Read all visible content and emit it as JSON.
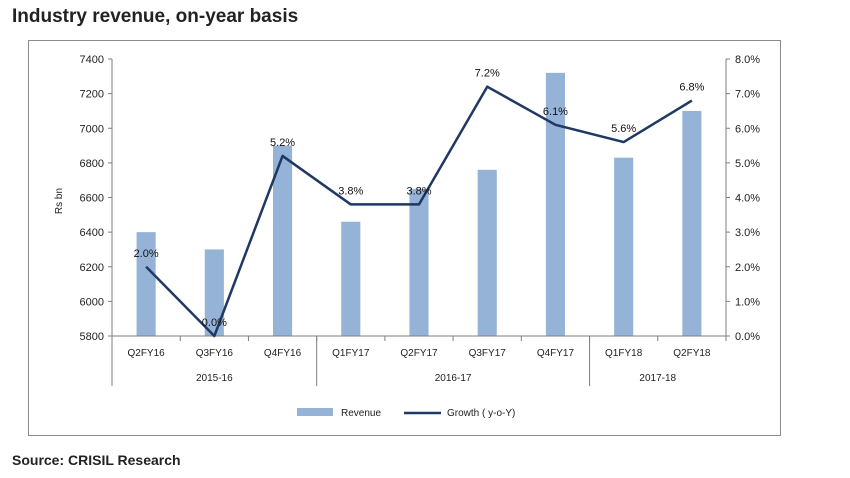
{
  "title": "Industry revenue, on-year basis",
  "source": "Source: CRISIL Research",
  "chart_data": {
    "type": "bar",
    "categories": [
      "Q2FY16",
      "Q3FY16",
      "Q4FY16",
      "Q1FY17",
      "Q2FY17",
      "Q3FY17",
      "Q4FY17",
      "Q1FY18",
      "Q2FY18"
    ],
    "groups": [
      {
        "label": "2015-16",
        "count": 3
      },
      {
        "label": "2016-17",
        "count": 4
      },
      {
        "label": "2017-18",
        "count": 2
      }
    ],
    "ylabel": "Rs bn",
    "ylim": [
      5800,
      7400
    ],
    "yticks": [
      "5800",
      "6000",
      "6200",
      "6400",
      "6600",
      "6800",
      "7000",
      "7200",
      "7400"
    ],
    "y2lim": [
      0,
      8
    ],
    "y2ticks": [
      "0.0%",
      "1.0%",
      "2.0%",
      "3.0%",
      "4.0%",
      "5.0%",
      "6.0%",
      "7.0%",
      "8.0%"
    ],
    "series": [
      {
        "name": "Revenue",
        "kind": "bar",
        "axis": "left",
        "values": [
          6400,
          6300,
          6900,
          6460,
          6650,
          6760,
          7320,
          6830,
          7100
        ],
        "color": "#95b3d7"
      },
      {
        "name": "Growth ( y-o-Y)",
        "kind": "line",
        "axis": "right",
        "values": [
          2.0,
          0.0,
          5.2,
          3.8,
          3.8,
          7.2,
          6.1,
          5.6,
          6.8
        ],
        "labels": [
          "2.0%",
          "0.0%",
          "5.2%",
          "3.8%",
          "3.8%",
          "7.2%",
          "6.1%",
          "5.6%",
          "6.8%"
        ],
        "color": "#1f3864"
      }
    ],
    "grid": false,
    "legend": "bottom"
  }
}
